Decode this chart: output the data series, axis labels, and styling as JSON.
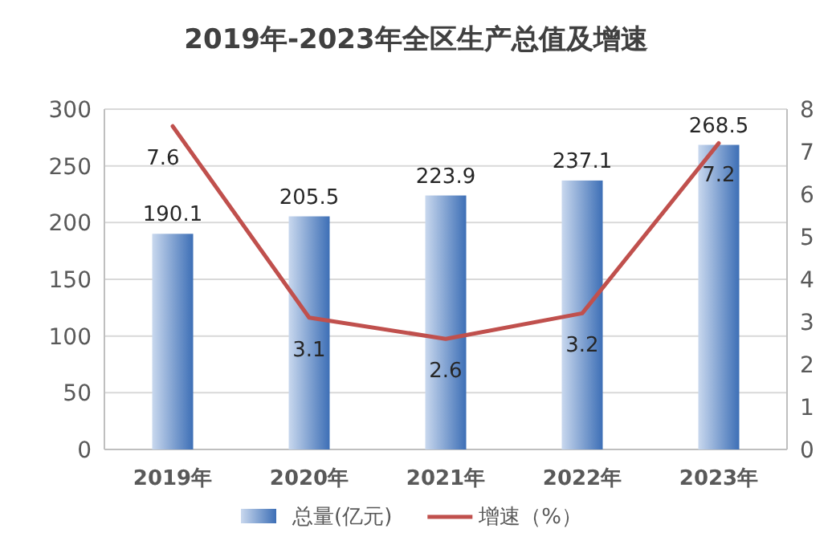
{
  "chart_data": {
    "type": "bar",
    "title": "2019年-2023年全区生产总值及增速",
    "categories": [
      "2019年",
      "2020年",
      "2021年",
      "2022年",
      "2023年"
    ],
    "series": [
      {
        "name": "总量(亿元)",
        "color": "#3d6fb6",
        "values": [
          190.1,
          205.5,
          223.9,
          237.1,
          268.5
        ]
      },
      {
        "name": "增速（%）",
        "type": "line",
        "axis": "y2",
        "color": "#c0504d",
        "values": [
          7.6,
          3.1,
          2.6,
          3.2,
          7.2
        ]
      }
    ],
    "ylim": [
      0,
      300
    ],
    "yticks": [
      0,
      50,
      100,
      150,
      200,
      250,
      300
    ],
    "y2lim": [
      0,
      8
    ],
    "y2ticks": [
      0,
      1,
      2,
      3,
      4,
      5,
      6,
      7,
      8
    ],
    "grid": "y",
    "legend": "bottom",
    "data_labels": true
  }
}
